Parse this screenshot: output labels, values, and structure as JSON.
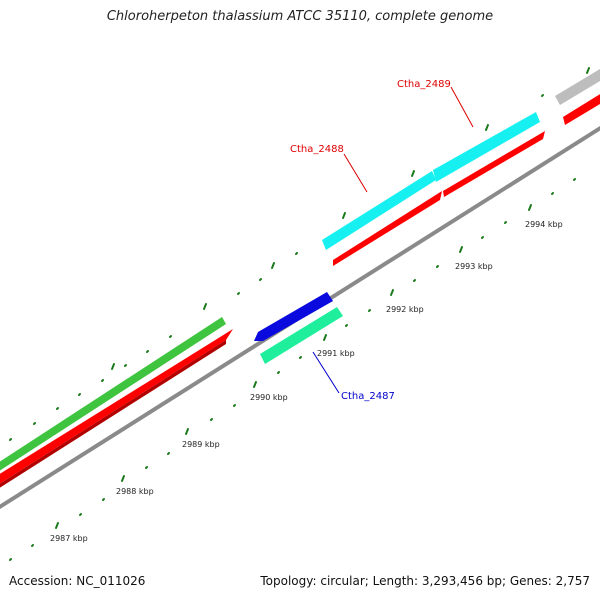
{
  "title": "Chloroherpeton thalassium ATCC 35110, complete genome",
  "footer": {
    "accession": "Accession: NC_011026",
    "summary": "Topology: circular; Length: 3,293,456 bp; Genes: 2,757"
  },
  "colors": {
    "backbone": "#8a8a8a",
    "cds_red": "#ff0000",
    "forward_green": "#3ec43e",
    "forward_cyan": "#17f0f0",
    "reverse_blue": "#0a0ade",
    "reverse_teal": "#1fef9d",
    "grey_feature": "#bdbdbd",
    "tick": "#1a7a1a"
  },
  "scale_labels": [
    "2987 kbp",
    "2988 kbp",
    "2989 kbp",
    "2990 kbp",
    "2991 kbp",
    "2992 kbp",
    "2993 kbp",
    "2994 kbp"
  ],
  "gene_labels": [
    {
      "text": "Ctha_2489",
      "color": "#dd0000"
    },
    {
      "text": "Ctha_2488",
      "color": "#dd0000"
    },
    {
      "text": "Ctha_2487",
      "color": "#0000cc"
    }
  ]
}
